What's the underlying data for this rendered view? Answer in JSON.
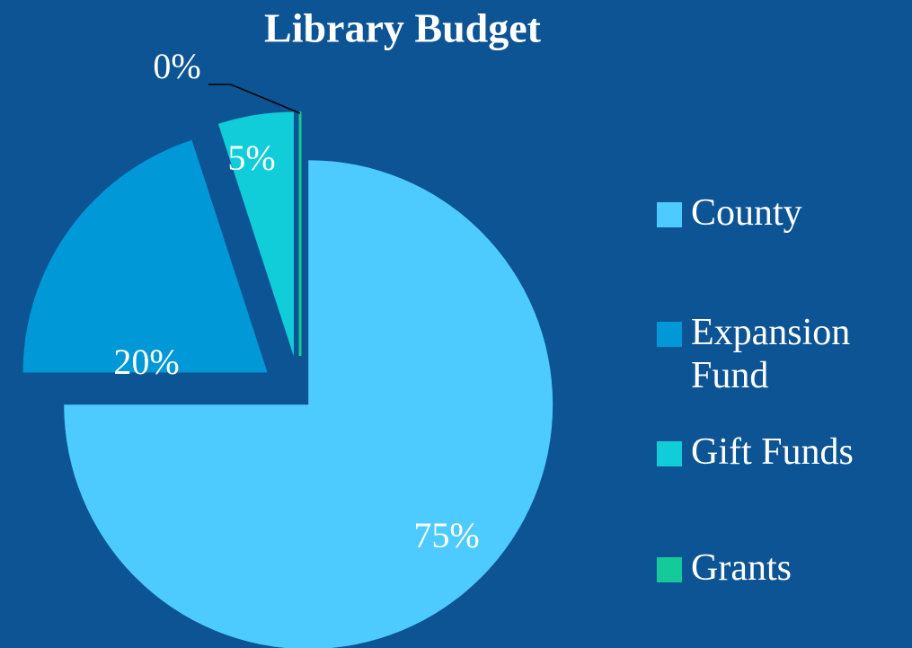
{
  "chart_data": {
    "type": "pie",
    "title": "Library Budget",
    "categories": [
      "County",
      "Expansion Fund",
      "Gift Funds",
      "Grants"
    ],
    "values": [
      75,
      20,
      5,
      0
    ],
    "value_labels": [
      "75%",
      "20%",
      "5%",
      "0%"
    ],
    "colors": [
      "#4dcbff",
      "#0098d6",
      "#10cdd9",
      "#14c99a"
    ],
    "legend": "right"
  }
}
